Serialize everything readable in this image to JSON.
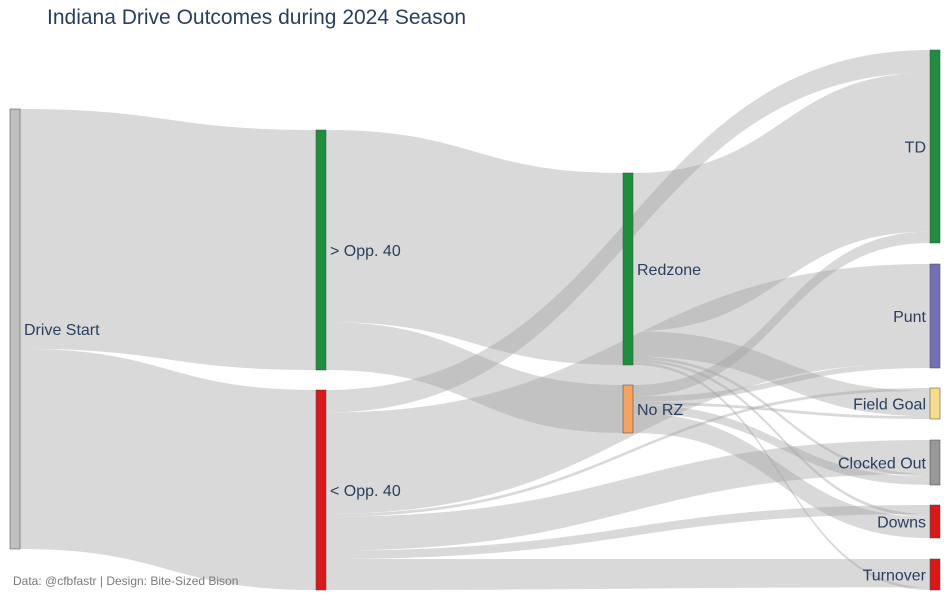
{
  "chart_data": {
    "type": "sankey",
    "title": "Indiana Drive Outcomes during 2024 Season",
    "caption": "Data: @cfbfastr | Design: Bite-Sized Bison",
    "nodes": [
      {
        "id": "start",
        "label": "Drive Start",
        "color": "#c0c0c0"
      },
      {
        "id": "opp40_plus",
        "label": "> Opp. 40",
        "color": "#1e8e3e"
      },
      {
        "id": "opp40_minus",
        "label": "< Opp. 40",
        "color": "#d7191c"
      },
      {
        "id": "redzone",
        "label": "Redzone",
        "color": "#1e8e3e"
      },
      {
        "id": "norz",
        "label": "No RZ",
        "color": "#f4a460"
      },
      {
        "id": "td",
        "label": "TD",
        "color": "#1e8e3e"
      },
      {
        "id": "punt",
        "label": "Punt",
        "color": "#7570b3"
      },
      {
        "id": "fg",
        "label": "Field Goal",
        "color": "#f7dc8b"
      },
      {
        "id": "clocked",
        "label": "Clocked Out",
        "color": "#999999"
      },
      {
        "id": "downs",
        "label": "Downs",
        "color": "#d7191c"
      },
      {
        "id": "turnover",
        "label": "Turnover",
        "color": "#d7191c"
      }
    ],
    "links": [
      {
        "source": "start",
        "target": "opp40_plus",
        "value": 85
      },
      {
        "source": "start",
        "target": "opp40_minus",
        "value": 71
      },
      {
        "source": "opp40_plus",
        "target": "redzone",
        "value": 68
      },
      {
        "source": "opp40_plus",
        "target": "norz",
        "value": 17
      },
      {
        "source": "opp40_minus",
        "target": "td",
        "value": 8
      },
      {
        "source": "opp40_minus",
        "target": "punt",
        "value": 36
      },
      {
        "source": "opp40_minus",
        "target": "fg",
        "value": 1
      },
      {
        "source": "opp40_minus",
        "target": "clocked",
        "value": 12
      },
      {
        "source": "opp40_minus",
        "target": "downs",
        "value": 3
      },
      {
        "source": "opp40_minus",
        "target": "turnover",
        "value": 11
      },
      {
        "source": "redzone",
        "target": "td",
        "value": 56
      },
      {
        "source": "redzone",
        "target": "fg",
        "value": 9
      },
      {
        "source": "redzone",
        "target": "clocked",
        "value": 1
      },
      {
        "source": "redzone",
        "target": "downs",
        "value": 1
      },
      {
        "source": "redzone",
        "target": "turnover",
        "value": 1
      },
      {
        "source": "norz",
        "target": "td",
        "value": 4
      },
      {
        "source": "norz",
        "target": "punt",
        "value": 2
      },
      {
        "source": "norz",
        "target": "fg",
        "value": 1
      },
      {
        "source": "norz",
        "target": "clocked",
        "value": 3
      },
      {
        "source": "norz",
        "target": "downs",
        "value": 7
      }
    ]
  }
}
